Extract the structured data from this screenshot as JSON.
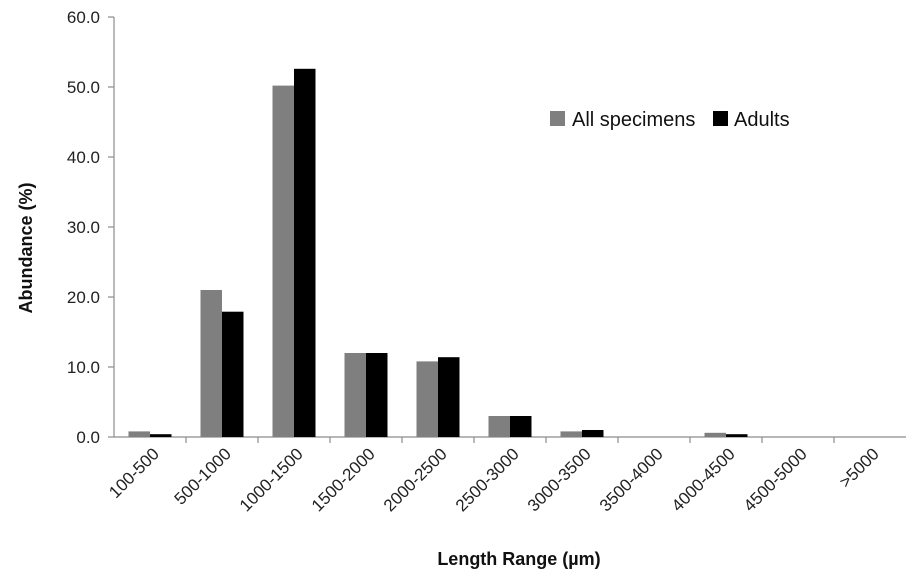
{
  "chart_data": {
    "type": "bar",
    "title": "",
    "xlabel": "Length Range (µm)",
    "ylabel": "Abundance (%)",
    "ylim": [
      0,
      60
    ],
    "yticks": [
      "0.0",
      "10.0",
      "20.0",
      "30.0",
      "40.0",
      "50.0",
      "60.0"
    ],
    "grid": false,
    "legend_position": "top-right",
    "categories": [
      "100-500",
      "500-1000",
      "1000-1500",
      "1500-2000",
      "2000-2500",
      "2500-3000",
      "3000-3500",
      "3500-4000",
      "4000-4500",
      "4500-5000",
      ">5000"
    ],
    "series": [
      {
        "name": "All specimens",
        "color": "#7f7f7f",
        "values": [
          0.8,
          21.0,
          50.2,
          12.0,
          10.8,
          3.0,
          0.8,
          0.0,
          0.6,
          0.0,
          0.0
        ]
      },
      {
        "name": "Adults",
        "color": "#000000",
        "values": [
          0.4,
          17.9,
          52.6,
          12.0,
          11.4,
          3.0,
          1.0,
          0.0,
          0.4,
          0.0,
          0.0
        ]
      }
    ]
  }
}
